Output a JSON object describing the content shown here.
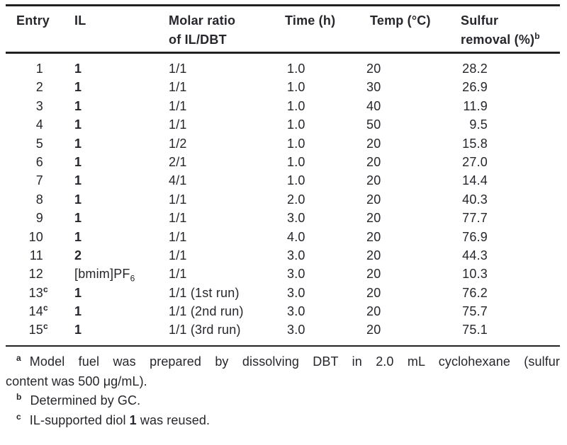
{
  "table": {
    "columns": [
      {
        "line1": "Entry"
      },
      {
        "line1": "IL"
      },
      {
        "line1": "Molar ratio",
        "line2": "of IL/DBT"
      },
      {
        "line1": "Time (h)"
      },
      {
        "line1": "Temp (°C)"
      },
      {
        "line1": "Sulfur",
        "line2": "removal (%)",
        "line2_sup": "b"
      }
    ],
    "rows": [
      {
        "entry": "1",
        "entry_sup": "",
        "il": "1",
        "il_bold": true,
        "il_sub": "",
        "molar": "1/1",
        "time": "1.0",
        "temp": "20",
        "sulfur": "28.2"
      },
      {
        "entry": "2",
        "entry_sup": "",
        "il": "1",
        "il_bold": true,
        "il_sub": "",
        "molar": "1/1",
        "time": "1.0",
        "temp": "30",
        "sulfur": "26.9"
      },
      {
        "entry": "3",
        "entry_sup": "",
        "il": "1",
        "il_bold": true,
        "il_sub": "",
        "molar": "1/1",
        "time": "1.0",
        "temp": "40",
        "sulfur": "11.9"
      },
      {
        "entry": "4",
        "entry_sup": "",
        "il": "1",
        "il_bold": true,
        "il_sub": "",
        "molar": "1/1",
        "time": "1.0",
        "temp": "50",
        "sulfur": "9.5"
      },
      {
        "entry": "5",
        "entry_sup": "",
        "il": "1",
        "il_bold": true,
        "il_sub": "",
        "molar": "1/2",
        "time": "1.0",
        "temp": "20",
        "sulfur": "15.8"
      },
      {
        "entry": "6",
        "entry_sup": "",
        "il": "1",
        "il_bold": true,
        "il_sub": "",
        "molar": "2/1",
        "time": "1.0",
        "temp": "20",
        "sulfur": "27.0"
      },
      {
        "entry": "7",
        "entry_sup": "",
        "il": "1",
        "il_bold": true,
        "il_sub": "",
        "molar": "4/1",
        "time": "1.0",
        "temp": "20",
        "sulfur": "14.4"
      },
      {
        "entry": "8",
        "entry_sup": "",
        "il": "1",
        "il_bold": true,
        "il_sub": "",
        "molar": "1/1",
        "time": "2.0",
        "temp": "20",
        "sulfur": "40.3"
      },
      {
        "entry": "9",
        "entry_sup": "",
        "il": "1",
        "il_bold": true,
        "il_sub": "",
        "molar": "1/1",
        "time": "3.0",
        "temp": "20",
        "sulfur": "77.7"
      },
      {
        "entry": "10",
        "entry_sup": "",
        "il": "1",
        "il_bold": true,
        "il_sub": "",
        "molar": "1/1",
        "time": "4.0",
        "temp": "20",
        "sulfur": "76.9"
      },
      {
        "entry": "11",
        "entry_sup": "",
        "il": "2",
        "il_bold": true,
        "il_sub": "",
        "molar": "1/1",
        "time": "3.0",
        "temp": "20",
        "sulfur": "44.3"
      },
      {
        "entry": "12",
        "entry_sup": "",
        "il": "[bmim]PF",
        "il_bold": false,
        "il_sub": "6",
        "molar": "1/1",
        "time": "3.0",
        "temp": "20",
        "sulfur": "10.3"
      },
      {
        "entry": "13",
        "entry_sup": "c",
        "il": "1",
        "il_bold": true,
        "il_sub": "",
        "molar": "1/1 (1st run)",
        "time": "3.0",
        "temp": "20",
        "sulfur": "76.2"
      },
      {
        "entry": "14",
        "entry_sup": "c",
        "il": "1",
        "il_bold": true,
        "il_sub": "",
        "molar": "1/1 (2nd run)",
        "time": "3.0",
        "temp": "20",
        "sulfur": "75.7"
      },
      {
        "entry": "15",
        "entry_sup": "c",
        "il": "1",
        "il_bold": true,
        "il_sub": "",
        "molar": "1/1 (3rd run)",
        "time": "3.0",
        "temp": "20",
        "sulfur": "75.1"
      }
    ]
  },
  "footnotes": [
    {
      "marker": "a",
      "line1": "Model fuel was prepared by dissolving DBT in 2.0 mL cyclohexane (sulfur",
      "line2": "content was 500 μg/mL)."
    },
    {
      "marker": "b",
      "text": "Determined by GC."
    },
    {
      "marker": "c",
      "text_pre": "IL-supported diol ",
      "text_bold": "1",
      "text_post": " was reused."
    }
  ],
  "colors": {
    "text": "#26262c",
    "rule": "#212121",
    "background": "#ffffff"
  }
}
